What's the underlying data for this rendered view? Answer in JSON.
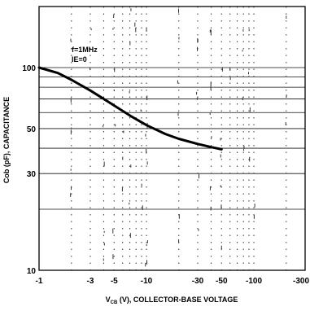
{
  "chart_data": {
    "type": "line",
    "xscale": "log",
    "yscale": "log",
    "xlim": [
      -1,
      -300
    ],
    "ylim": [
      10,
      200
    ],
    "xlabel": "V_CB (V), COLLECTOR-BASE VOLTAGE",
    "xlabel_main": "V",
    "xlabel_subscript": "CB",
    "xlabel_rest": " (V), COLLECTOR-BASE VOLTAGE",
    "ylabel": "Cob (pF), CAPACITANCE",
    "x_tick_labels": [
      "-1",
      "-3",
      "-5",
      "-10",
      "-30",
      "-50",
      "-100",
      "-300"
    ],
    "x_ticks": [
      -1,
      -3,
      -5,
      -10,
      -30,
      -50,
      -100,
      -300
    ],
    "y_tick_labels": [
      "100",
      "50",
      "30",
      "10"
    ],
    "y_ticks": [
      100,
      50,
      30,
      10
    ],
    "grid": true,
    "annotations": [
      "f=1MHz",
      "IE=0"
    ],
    "series": [
      {
        "x": [
          -1,
          -1.5,
          -2,
          -3,
          -4,
          -5,
          -7,
          -10,
          -15,
          -20,
          -30,
          -40,
          -50
        ],
        "y": [
          100,
          94,
          87,
          77,
          70,
          65,
          58,
          52,
          47,
          44.5,
          42,
          40.5,
          39.5
        ]
      }
    ]
  }
}
